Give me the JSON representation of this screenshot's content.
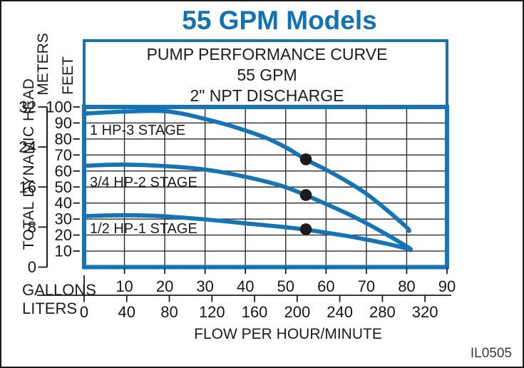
{
  "page": {
    "title": "55 GPM Models",
    "figure_code": "IL0505",
    "colors": {
      "accent_blue": "#1374ba",
      "grid_black": "#2e2a2b",
      "marker_black": "#1d1b1b",
      "text_black": "#161616"
    }
  },
  "chart_data": {
    "type": "line",
    "title": "55 GPM Models",
    "header": [
      "PUMP PERFORMANCE CURVE",
      "55 GPM",
      "2\" NPT DISCHARGE"
    ],
    "y_axis": {
      "label": "TOTAL DYNAMIC HEAD",
      "feet": {
        "label": "FEET",
        "range": [
          0,
          100
        ],
        "ticks": [
          100,
          90,
          80,
          70,
          60,
          50,
          40,
          30,
          20,
          10
        ]
      },
      "meters": {
        "label": "METERS",
        "range": [
          0,
          32
        ],
        "ticks": [
          32,
          24,
          16,
          8,
          0
        ]
      }
    },
    "x_axis": {
      "label": "FLOW PER HOUR/MINUTE",
      "gallons": {
        "label": "GALLONS",
        "range": [
          0,
          90
        ],
        "ticks": [
          10,
          20,
          30,
          40,
          50,
          60,
          70,
          80,
          90
        ]
      },
      "liters": {
        "label": "LITERS",
        "ticks": [
          0,
          40,
          80,
          120,
          160,
          200,
          240,
          280,
          320
        ]
      }
    },
    "grid": {
      "x_step_gallons": 10,
      "y_step_feet": 10,
      "grid_on": true
    },
    "series": [
      {
        "label": "1 HP-3 STAGE",
        "marker_gpm_ft": [
          55,
          67.3
        ],
        "points_gpm_ft": [
          [
            0,
            95.8
          ],
          [
            5,
            96.6
          ],
          [
            10,
            97.1
          ],
          [
            15,
            97.5
          ],
          [
            20,
            97.4
          ],
          [
            25,
            95.5
          ],
          [
            30,
            92.5
          ],
          [
            35,
            89.2
          ],
          [
            40,
            85.3
          ],
          [
            45,
            80.8
          ],
          [
            50,
            74.8
          ],
          [
            55,
            67.2
          ],
          [
            60,
            60.8
          ],
          [
            65,
            53.8
          ],
          [
            70,
            45.8
          ],
          [
            75,
            35.8
          ],
          [
            80,
            24.8
          ],
          [
            80.6,
            22.6
          ]
        ]
      },
      {
        "label": "3/4 HP-2 STAGE",
        "marker_gpm_ft": [
          55,
          45.0
        ],
        "points_gpm_ft": [
          [
            0,
            63.2
          ],
          [
            5,
            63.8
          ],
          [
            10,
            64.0
          ],
          [
            15,
            63.7
          ],
          [
            20,
            63.1
          ],
          [
            25,
            62.2
          ],
          [
            30,
            60.9
          ],
          [
            35,
            58.9
          ],
          [
            40,
            56.4
          ],
          [
            45,
            53.5
          ],
          [
            50,
            49.9
          ],
          [
            55,
            44.9
          ],
          [
            60,
            39.4
          ],
          [
            65,
            33.7
          ],
          [
            70,
            27.4
          ],
          [
            75,
            20.4
          ],
          [
            80,
            12.9
          ],
          [
            81,
            11.2
          ]
        ]
      },
      {
        "label": "1/2 HP-1 STAGE",
        "marker_gpm_ft": [
          55,
          23.6
        ],
        "points_gpm_ft": [
          [
            0,
            31.8
          ],
          [
            5,
            32.2
          ],
          [
            10,
            32.4
          ],
          [
            15,
            32.2
          ],
          [
            20,
            31.7
          ],
          [
            25,
            30.8
          ],
          [
            30,
            29.8
          ],
          [
            35,
            28.6
          ],
          [
            40,
            27.3
          ],
          [
            45,
            26.1
          ],
          [
            50,
            24.9
          ],
          [
            55,
            23.4
          ],
          [
            60,
            21.5
          ],
          [
            65,
            19.5
          ],
          [
            70,
            17.2
          ],
          [
            75,
            14.6
          ],
          [
            80,
            11.6
          ],
          [
            81,
            10.6
          ]
        ]
      }
    ]
  }
}
